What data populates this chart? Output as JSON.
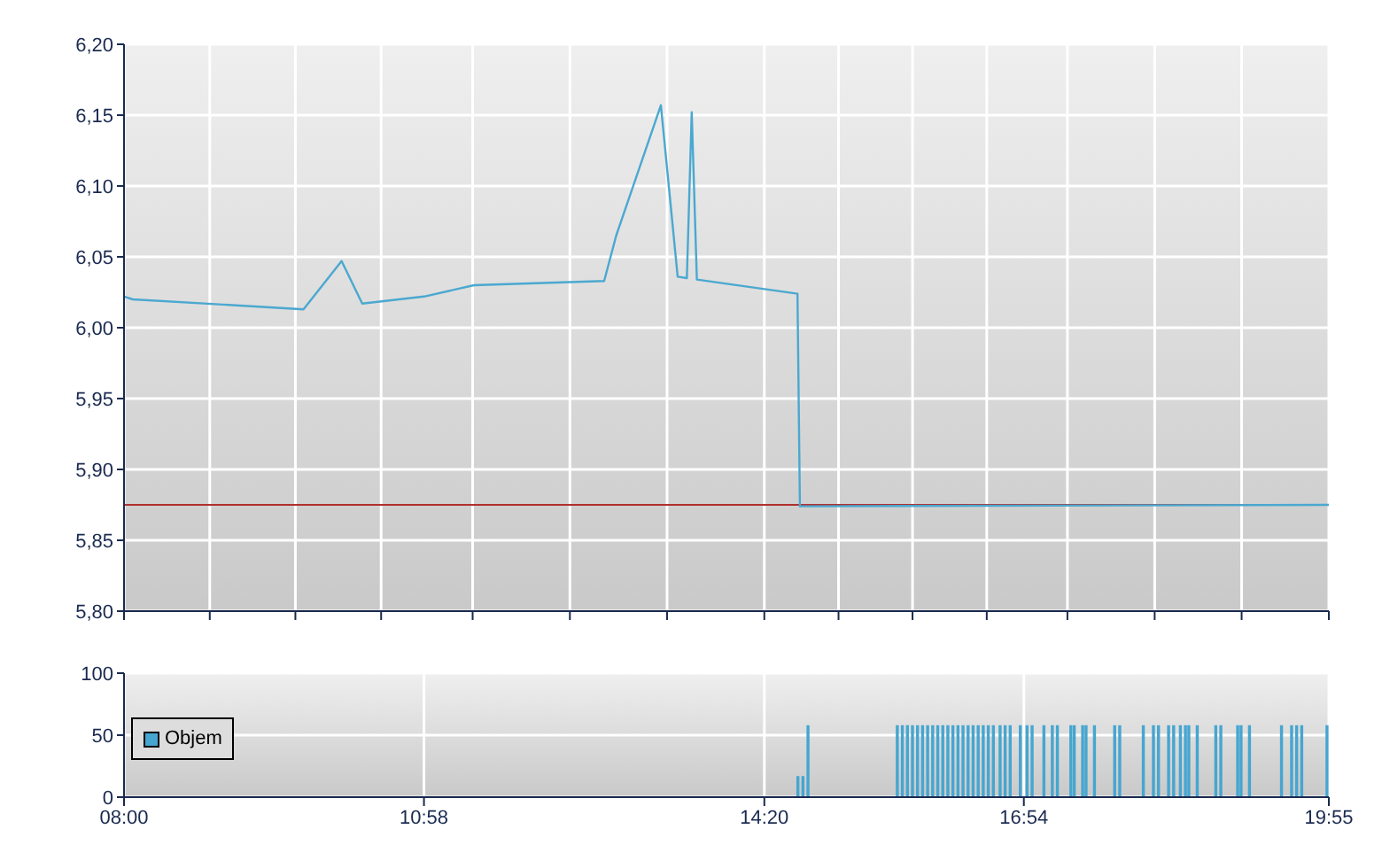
{
  "chart_data": [
    {
      "type": "line",
      "series": [
        {
          "color": "#4aa8d0",
          "x": [
            8.0,
            8.087,
            9.775,
            10.152,
            10.356,
            10.967,
            11.462,
            12.749,
            12.868,
            13.31,
            13.476,
            13.567,
            13.615,
            13.666,
            14.661,
            14.685,
            14.761,
            19.9167
          ],
          "values": [
            6.022,
            6.02,
            6.013,
            6.047,
            6.017,
            6.022,
            6.03,
            6.033,
            6.065,
            6.157,
            6.036,
            6.035,
            6.152,
            6.034,
            6.024,
            5.874,
            5.874,
            5.875
          ]
        }
      ],
      "xlim": [
        8.0,
        19.9167
      ],
      "xticks": [
        {
          "value": 8.0,
          "label": null
        },
        {
          "value": 8.848,
          "label": null
        },
        {
          "value": 9.695,
          "label": null
        },
        {
          "value": 10.543,
          "label": null
        },
        {
          "value": 11.448,
          "label": null
        },
        {
          "value": 12.41,
          "label": null
        },
        {
          "value": 13.371,
          "label": null
        },
        {
          "value": 14.333,
          "label": null
        },
        {
          "value": 15.067,
          "label": null
        },
        {
          "value": 15.799,
          "label": null
        },
        {
          "value": 16.533,
          "label": null
        },
        {
          "value": 17.331,
          "label": null
        },
        {
          "value": 18.194,
          "label": null
        },
        {
          "value": 19.054,
          "label": null
        },
        {
          "value": 19.9167,
          "label": null
        }
      ],
      "ylim": [
        5.8,
        6.2
      ],
      "yticks": [
        {
          "value": 5.8,
          "label": "5,80"
        },
        {
          "value": 5.85,
          "label": "5,85"
        },
        {
          "value": 5.9,
          "label": "5,90"
        },
        {
          "value": 5.95,
          "label": "5,95"
        },
        {
          "value": 6.0,
          "label": "6,00"
        },
        {
          "value": 6.05,
          "label": "6,05"
        },
        {
          "value": 6.1,
          "label": "6,10"
        },
        {
          "value": 6.15,
          "label": "6,15"
        },
        {
          "value": 6.2,
          "label": "6,20"
        }
      ],
      "ref_lines": [
        {
          "axis": "y",
          "value": 5.875,
          "color": "#b03030"
        }
      ],
      "tick_labels": "y",
      "grid": true
    },
    {
      "type": "bar",
      "series": [
        {
          "name": "Objem",
          "color": "#46a6d0",
          "x": [
            14.6667,
            14.7167,
            14.7667,
            15.65,
            15.7,
            15.75,
            15.8,
            15.85,
            15.9,
            15.95,
            16.0,
            16.05,
            16.1,
            16.15,
            16.2,
            16.25,
            16.3,
            16.35,
            16.4,
            16.45,
            16.5,
            16.55,
            16.6,
            16.6667,
            16.7167,
            16.7667,
            16.8667,
            16.9333,
            16.9833,
            17.1,
            17.1833,
            17.2333,
            17.3667,
            17.4,
            17.4833,
            17.5167,
            17.6,
            17.8,
            17.85,
            18.0833,
            18.1833,
            18.2333,
            18.3333,
            18.3833,
            18.45,
            18.5,
            18.5333,
            18.6167,
            18.8,
            18.85,
            19.0167,
            19.05,
            19.1333,
            19.45,
            19.55,
            19.6,
            19.65,
            19.9
          ],
          "values": [
            17,
            17,
            58,
            58,
            58,
            58,
            58,
            58,
            58,
            58,
            58,
            58,
            58,
            58,
            58,
            58,
            58,
            58,
            58,
            58,
            58,
            58,
            58,
            58,
            58,
            58,
            58,
            58,
            58,
            58,
            58,
            58,
            58,
            58,
            58,
            58,
            58,
            58,
            58,
            58,
            58,
            58,
            58,
            58,
            58,
            58,
            58,
            58,
            58,
            58,
            58,
            58,
            58,
            58,
            58,
            58,
            58,
            58
          ]
        }
      ],
      "xlim": [
        8.0,
        19.9167
      ],
      "xticks": [
        {
          "value": 8.0,
          "label": "08:00"
        },
        {
          "value": 10.9667,
          "label": "10:58"
        },
        {
          "value": 14.3333,
          "label": "14:20"
        },
        {
          "value": 16.9,
          "label": "16:54"
        },
        {
          "value": 19.9167,
          "label": "19:55"
        }
      ],
      "ylim": [
        0,
        100
      ],
      "yticks": [
        0,
        50,
        100
      ],
      "legend": "left",
      "grid": true
    }
  ]
}
